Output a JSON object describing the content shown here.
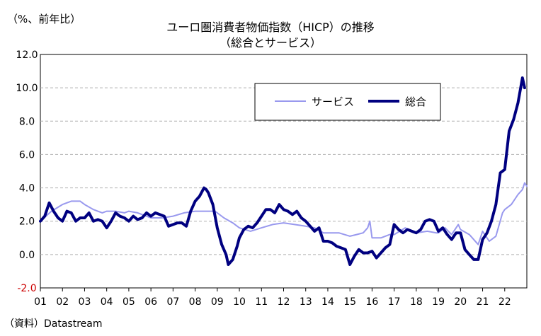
{
  "chart_data": {
    "type": "line",
    "title": "ユーロ圏消費者物価指数（HICP）の推移",
    "subtitle": "（総合とサービス）",
    "ylabel": "（%、前年比）",
    "source": "（資料）Datastream",
    "ylim": [
      -2.0,
      12.0
    ],
    "xlim": [
      2001.0,
      2023.0
    ],
    "y_ticks": [
      "12.0",
      "10.0",
      "8.0",
      "6.0",
      "4.0",
      "2.0",
      "0.0",
      "-2.0"
    ],
    "y_tick_values": [
      12,
      10,
      8,
      6,
      4,
      2,
      0,
      -2
    ],
    "x_ticks": [
      "01",
      "02",
      "03",
      "04",
      "05",
      "06",
      "07",
      "08",
      "09",
      "10",
      "11",
      "12",
      "13",
      "14",
      "15",
      "16",
      "17",
      "18",
      "19",
      "20",
      "21",
      "22"
    ],
    "grid": "horizontal-dashed",
    "legend_position": "top-right",
    "colors": {
      "services": "#9999ee",
      "overall": "#000080",
      "negative_tick": "#cc0000"
    },
    "series": [
      {
        "name": "サービス",
        "key": "services",
        "points": [
          [
            2001.0,
            2.0
          ],
          [
            2001.5,
            2.6
          ],
          [
            2002.0,
            3.0
          ],
          [
            2002.4,
            3.2
          ],
          [
            2002.8,
            3.2
          ],
          [
            2003.0,
            3.0
          ],
          [
            2003.4,
            2.7
          ],
          [
            2003.8,
            2.5
          ],
          [
            2004.0,
            2.6
          ],
          [
            2004.4,
            2.6
          ],
          [
            2004.8,
            2.5
          ],
          [
            2005.0,
            2.6
          ],
          [
            2005.4,
            2.5
          ],
          [
            2005.8,
            2.3
          ],
          [
            2006.0,
            2.2
          ],
          [
            2006.5,
            2.2
          ],
          [
            2007.0,
            2.3
          ],
          [
            2007.5,
            2.5
          ],
          [
            2008.0,
            2.6
          ],
          [
            2008.5,
            2.6
          ],
          [
            2008.9,
            2.6
          ],
          [
            2009.0,
            2.5
          ],
          [
            2009.3,
            2.2
          ],
          [
            2009.7,
            1.9
          ],
          [
            2010.0,
            1.6
          ],
          [
            2010.5,
            1.4
          ],
          [
            2011.0,
            1.6
          ],
          [
            2011.5,
            1.8
          ],
          [
            2012.0,
            1.9
          ],
          [
            2012.5,
            1.8
          ],
          [
            2013.0,
            1.7
          ],
          [
            2013.4,
            1.6
          ],
          [
            2013.8,
            1.3
          ],
          [
            2014.0,
            1.3
          ],
          [
            2014.5,
            1.3
          ],
          [
            2015.0,
            1.1
          ],
          [
            2015.3,
            1.2
          ],
          [
            2015.6,
            1.3
          ],
          [
            2015.8,
            1.6
          ],
          [
            2015.9,
            2.0
          ],
          [
            2016.0,
            1.0
          ],
          [
            2016.4,
            1.0
          ],
          [
            2016.8,
            1.2
          ],
          [
            2017.0,
            1.2
          ],
          [
            2017.5,
            1.6
          ],
          [
            2017.8,
            1.4
          ],
          [
            2018.0,
            1.3
          ],
          [
            2018.5,
            1.4
          ],
          [
            2018.9,
            1.3
          ],
          [
            2019.0,
            1.3
          ],
          [
            2019.3,
            1.6
          ],
          [
            2019.6,
            1.2
          ],
          [
            2019.9,
            1.8
          ],
          [
            2020.0,
            1.5
          ],
          [
            2020.4,
            1.2
          ],
          [
            2020.8,
            0.6
          ],
          [
            2021.0,
            1.4
          ],
          [
            2021.3,
            0.8
          ],
          [
            2021.6,
            1.1
          ],
          [
            2021.9,
            2.5
          ],
          [
            2022.0,
            2.7
          ],
          [
            2022.3,
            3.0
          ],
          [
            2022.6,
            3.6
          ],
          [
            2022.8,
            3.9
          ],
          [
            2022.9,
            4.3
          ],
          [
            2023.0,
            4.1
          ]
        ]
      },
      {
        "name": "総合",
        "key": "overall",
        "points": [
          [
            2001.0,
            2.0
          ],
          [
            2001.2,
            2.3
          ],
          [
            2001.4,
            3.1
          ],
          [
            2001.6,
            2.6
          ],
          [
            2001.8,
            2.2
          ],
          [
            2002.0,
            2.0
          ],
          [
            2002.2,
            2.6
          ],
          [
            2002.4,
            2.5
          ],
          [
            2002.6,
            2.0
          ],
          [
            2002.8,
            2.2
          ],
          [
            2003.0,
            2.2
          ],
          [
            2003.2,
            2.5
          ],
          [
            2003.4,
            2.0
          ],
          [
            2003.6,
            2.1
          ],
          [
            2003.8,
            2.0
          ],
          [
            2004.0,
            1.6
          ],
          [
            2004.2,
            2.0
          ],
          [
            2004.4,
            2.5
          ],
          [
            2004.6,
            2.3
          ],
          [
            2004.8,
            2.2
          ],
          [
            2005.0,
            2.0
          ],
          [
            2005.2,
            2.3
          ],
          [
            2005.4,
            2.1
          ],
          [
            2005.6,
            2.2
          ],
          [
            2005.8,
            2.5
          ],
          [
            2006.0,
            2.3
          ],
          [
            2006.2,
            2.5
          ],
          [
            2006.4,
            2.4
          ],
          [
            2006.6,
            2.3
          ],
          [
            2006.8,
            1.7
          ],
          [
            2007.0,
            1.8
          ],
          [
            2007.2,
            1.9
          ],
          [
            2007.4,
            1.9
          ],
          [
            2007.6,
            1.7
          ],
          [
            2007.8,
            2.6
          ],
          [
            2008.0,
            3.2
          ],
          [
            2008.2,
            3.5
          ],
          [
            2008.4,
            4.0
          ],
          [
            2008.5,
            3.9
          ],
          [
            2008.6,
            3.7
          ],
          [
            2008.8,
            3.0
          ],
          [
            2009.0,
            1.6
          ],
          [
            2009.2,
            0.6
          ],
          [
            2009.4,
            0.0
          ],
          [
            2009.5,
            -0.6
          ],
          [
            2009.7,
            -0.3
          ],
          [
            2009.9,
            0.5
          ],
          [
            2010.0,
            1.0
          ],
          [
            2010.2,
            1.5
          ],
          [
            2010.4,
            1.7
          ],
          [
            2010.6,
            1.6
          ],
          [
            2010.8,
            1.9
          ],
          [
            2011.0,
            2.3
          ],
          [
            2011.2,
            2.7
          ],
          [
            2011.4,
            2.7
          ],
          [
            2011.6,
            2.5
          ],
          [
            2011.8,
            3.0
          ],
          [
            2012.0,
            2.7
          ],
          [
            2012.2,
            2.6
          ],
          [
            2012.4,
            2.4
          ],
          [
            2012.6,
            2.6
          ],
          [
            2012.8,
            2.2
          ],
          [
            2013.0,
            2.0
          ],
          [
            2013.2,
            1.7
          ],
          [
            2013.4,
            1.4
          ],
          [
            2013.6,
            1.6
          ],
          [
            2013.8,
            0.8
          ],
          [
            2014.0,
            0.8
          ],
          [
            2014.2,
            0.7
          ],
          [
            2014.4,
            0.5
          ],
          [
            2014.6,
            0.4
          ],
          [
            2014.8,
            0.3
          ],
          [
            2015.0,
            -0.6
          ],
          [
            2015.2,
            -0.1
          ],
          [
            2015.4,
            0.3
          ],
          [
            2015.6,
            0.1
          ],
          [
            2015.8,
            0.1
          ],
          [
            2016.0,
            0.2
          ],
          [
            2016.2,
            -0.2
          ],
          [
            2016.4,
            0.1
          ],
          [
            2016.6,
            0.4
          ],
          [
            2016.8,
            0.6
          ],
          [
            2017.0,
            1.8
          ],
          [
            2017.2,
            1.5
          ],
          [
            2017.4,
            1.3
          ],
          [
            2017.6,
            1.5
          ],
          [
            2017.8,
            1.4
          ],
          [
            2018.0,
            1.3
          ],
          [
            2018.2,
            1.5
          ],
          [
            2018.4,
            2.0
          ],
          [
            2018.6,
            2.1
          ],
          [
            2018.8,
            2.0
          ],
          [
            2019.0,
            1.4
          ],
          [
            2019.2,
            1.6
          ],
          [
            2019.4,
            1.2
          ],
          [
            2019.6,
            0.9
          ],
          [
            2019.8,
            1.3
          ],
          [
            2020.0,
            1.3
          ],
          [
            2020.2,
            0.3
          ],
          [
            2020.4,
            0.0
          ],
          [
            2020.6,
            -0.3
          ],
          [
            2020.8,
            -0.3
          ],
          [
            2021.0,
            0.9
          ],
          [
            2021.2,
            1.3
          ],
          [
            2021.4,
            2.0
          ],
          [
            2021.6,
            3.0
          ],
          [
            2021.8,
            4.9
          ],
          [
            2022.0,
            5.1
          ],
          [
            2022.2,
            7.4
          ],
          [
            2022.4,
            8.1
          ],
          [
            2022.6,
            9.1
          ],
          [
            2022.8,
            10.6
          ],
          [
            2022.9,
            10.0
          ]
        ]
      }
    ]
  }
}
